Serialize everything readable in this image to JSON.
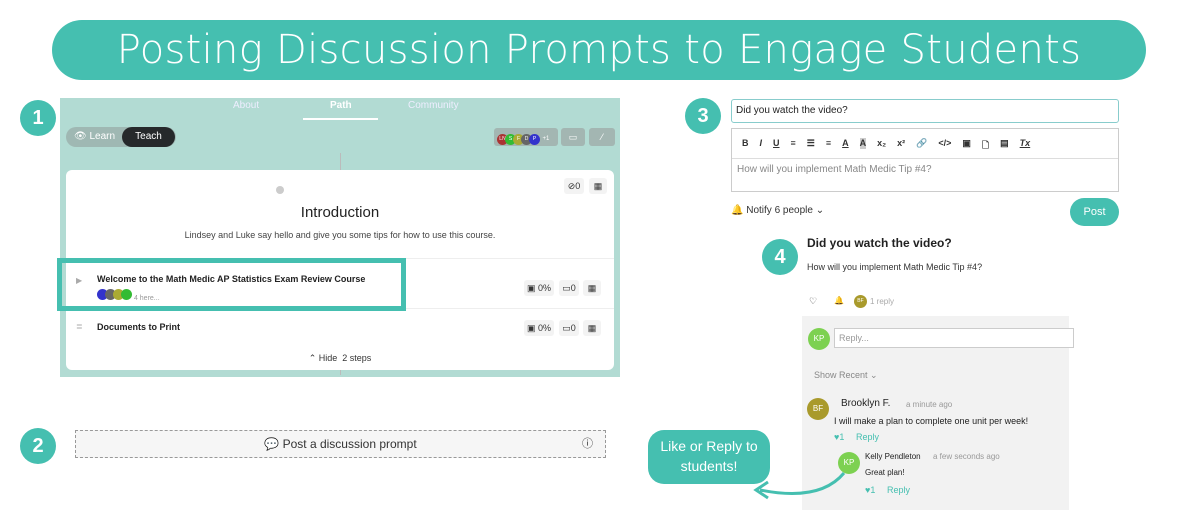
{
  "banner": {
    "title": "Posting Discussion Prompts to Engage Students"
  },
  "steps": [
    "1",
    "2",
    "3",
    "4"
  ],
  "colors": {
    "accent": "#45bfb0",
    "panel_bg": "#b2dbd3"
  },
  "course": {
    "tabs": [
      "About",
      "Path",
      "Community"
    ],
    "active_tab": "Path",
    "toggle": {
      "learn": "Learn",
      "teach": "Teach"
    },
    "avatars": [
      "LN",
      "S",
      "F",
      "D",
      "P"
    ],
    "avatars_more": "+1",
    "section": {
      "title": "Introduction",
      "description": "Lindsey and Luke say hello and give you some tips for how to use this course.",
      "counter": "0"
    },
    "rows": [
      {
        "title": "Welcome to the Math Medic AP Statistics Exam Review Course",
        "sub": "4 here...",
        "progress": "0%",
        "count": "0"
      },
      {
        "title": "Documents to Print",
        "progress": "0%",
        "count": "0"
      }
    ],
    "hide_label": "Hide",
    "steps_count": "2 steps"
  },
  "prompt_button": {
    "label": "Post a discussion prompt"
  },
  "composer": {
    "title_value": "Did you watch the video?",
    "toolbar": [
      "B",
      "I",
      "U",
      "≡",
      "☰",
      "≡",
      "A",
      "A",
      "x₂",
      "x²",
      "🔗",
      "</>",
      "▣",
      "🗋",
      "▤",
      "Tx"
    ],
    "body_placeholder": "How will you implement Math Medic Tip #4?",
    "notify": "Notify 6 people",
    "post": "Post"
  },
  "thread": {
    "title": "Did you watch the video?",
    "body": "How will you implement Math Medic Tip #4?",
    "reply_count": "1 reply",
    "reply_avatar": "BF",
    "reply_placeholder": "Reply...",
    "my_initials": "KP",
    "show_recent": "Show Recent",
    "comments": [
      {
        "initials": "BF",
        "name": "Brooklyn F.",
        "time": "a minute ago",
        "text": "I will make a plan to complete one unit per week!",
        "likes": "1",
        "reply": "Reply"
      },
      {
        "initials": "KP",
        "name": "Kelly Pendleton",
        "time": "a few seconds ago",
        "text": "Great plan!",
        "likes": "1",
        "reply": "Reply"
      }
    ]
  },
  "callout": {
    "text": "Like or Reply to students!"
  }
}
